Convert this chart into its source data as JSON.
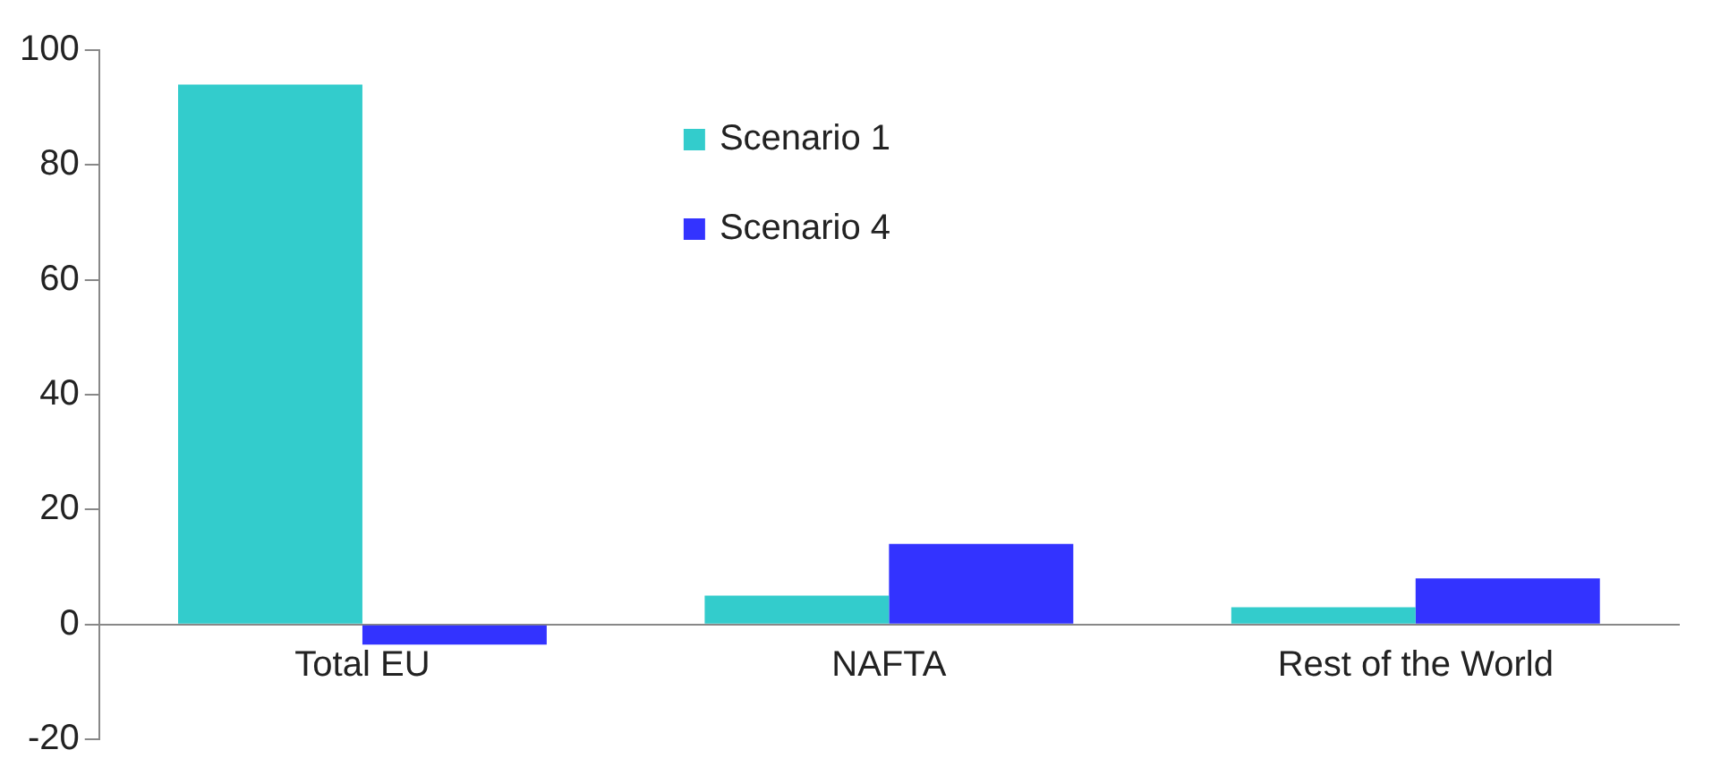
{
  "chart_data": {
    "type": "bar",
    "categories": [
      "Total EU",
      "NAFTA",
      "Rest of the World"
    ],
    "series": [
      {
        "name": "Scenario 1",
        "color": "#33cccc",
        "values": [
          94,
          5,
          3
        ]
      },
      {
        "name": "Scenario 4",
        "color": "#3333ff",
        "values": [
          -3.5,
          14,
          8
        ]
      }
    ],
    "ylim": [
      -20,
      100
    ],
    "yticks": [
      -20,
      0,
      20,
      40,
      60,
      80,
      100
    ],
    "grid": false,
    "legend": "top"
  }
}
